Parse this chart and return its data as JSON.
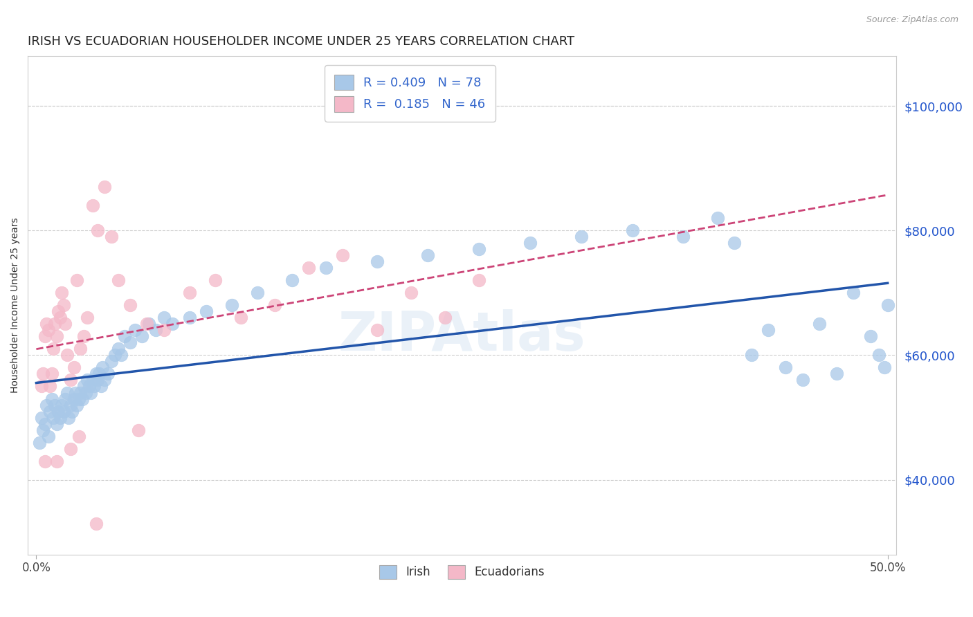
{
  "title": "IRISH VS ECUADORIAN HOUSEHOLDER INCOME UNDER 25 YEARS CORRELATION CHART",
  "source_text": "Source: ZipAtlas.com",
  "ylabel": "Householder Income Under 25 years",
  "xlim": [
    -0.005,
    0.505
  ],
  "ylim": [
    28000,
    108000
  ],
  "ytick_values": [
    40000,
    60000,
    80000,
    100000
  ],
  "ytick_labels": [
    "$40,000",
    "$60,000",
    "$80,000",
    "$100,000"
  ],
  "watermark": "ZIPAtlas",
  "legend_irish_R": "0.409",
  "legend_irish_N": "78",
  "legend_ecu_R": "0.185",
  "legend_ecu_N": "46",
  "irish_color": "#a8c8e8",
  "ecu_color": "#f4b8c8",
  "irish_line_color": "#2255aa",
  "ecu_line_color": "#cc4477",
  "background_color": "#ffffff",
  "grid_color": "#cccccc",
  "title_fontsize": 13,
  "irish_x": [
    0.002,
    0.003,
    0.004,
    0.005,
    0.006,
    0.007,
    0.008,
    0.009,
    0.01,
    0.011,
    0.012,
    0.013,
    0.014,
    0.015,
    0.016,
    0.017,
    0.018,
    0.019,
    0.02,
    0.021,
    0.022,
    0.023,
    0.024,
    0.025,
    0.026,
    0.027,
    0.028,
    0.029,
    0.03,
    0.031,
    0.032,
    0.033,
    0.034,
    0.035,
    0.036,
    0.037,
    0.038,
    0.039,
    0.04,
    0.042,
    0.044,
    0.046,
    0.048,
    0.05,
    0.052,
    0.055,
    0.058,
    0.062,
    0.066,
    0.07,
    0.075,
    0.08,
    0.09,
    0.1,
    0.115,
    0.13,
    0.15,
    0.17,
    0.2,
    0.23,
    0.26,
    0.29,
    0.32,
    0.35,
    0.38,
    0.4,
    0.41,
    0.42,
    0.43,
    0.44,
    0.45,
    0.46,
    0.47,
    0.48,
    0.49,
    0.495,
    0.498,
    0.5
  ],
  "irish_y": [
    46000,
    50000,
    48000,
    49000,
    52000,
    47000,
    51000,
    53000,
    50000,
    52000,
    49000,
    51000,
    50000,
    52000,
    51000,
    53000,
    54000,
    50000,
    52000,
    51000,
    53000,
    54000,
    52000,
    53000,
    54000,
    53000,
    55000,
    54000,
    56000,
    55000,
    54000,
    56000,
    55000,
    57000,
    56000,
    57000,
    55000,
    58000,
    56000,
    57000,
    59000,
    60000,
    61000,
    60000,
    63000,
    62000,
    64000,
    63000,
    65000,
    64000,
    66000,
    65000,
    66000,
    67000,
    68000,
    70000,
    72000,
    74000,
    75000,
    76000,
    77000,
    78000,
    79000,
    80000,
    79000,
    82000,
    78000,
    60000,
    64000,
    58000,
    56000,
    65000,
    57000,
    70000,
    63000,
    60000,
    58000,
    68000
  ],
  "ecu_x": [
    0.003,
    0.004,
    0.005,
    0.006,
    0.007,
    0.008,
    0.009,
    0.01,
    0.011,
    0.012,
    0.013,
    0.014,
    0.015,
    0.016,
    0.017,
    0.018,
    0.02,
    0.022,
    0.024,
    0.026,
    0.028,
    0.03,
    0.033,
    0.036,
    0.04,
    0.044,
    0.048,
    0.055,
    0.065,
    0.075,
    0.09,
    0.105,
    0.12,
    0.14,
    0.16,
    0.18,
    0.2,
    0.22,
    0.24,
    0.26,
    0.005,
    0.012,
    0.02,
    0.025,
    0.035,
    0.06
  ],
  "ecu_y": [
    55000,
    57000,
    63000,
    65000,
    64000,
    55000,
    57000,
    61000,
    65000,
    63000,
    67000,
    66000,
    70000,
    68000,
    65000,
    60000,
    56000,
    58000,
    72000,
    61000,
    63000,
    66000,
    84000,
    80000,
    87000,
    79000,
    72000,
    68000,
    65000,
    64000,
    70000,
    72000,
    66000,
    68000,
    74000,
    76000,
    64000,
    70000,
    66000,
    72000,
    43000,
    43000,
    45000,
    47000,
    33000,
    48000
  ]
}
